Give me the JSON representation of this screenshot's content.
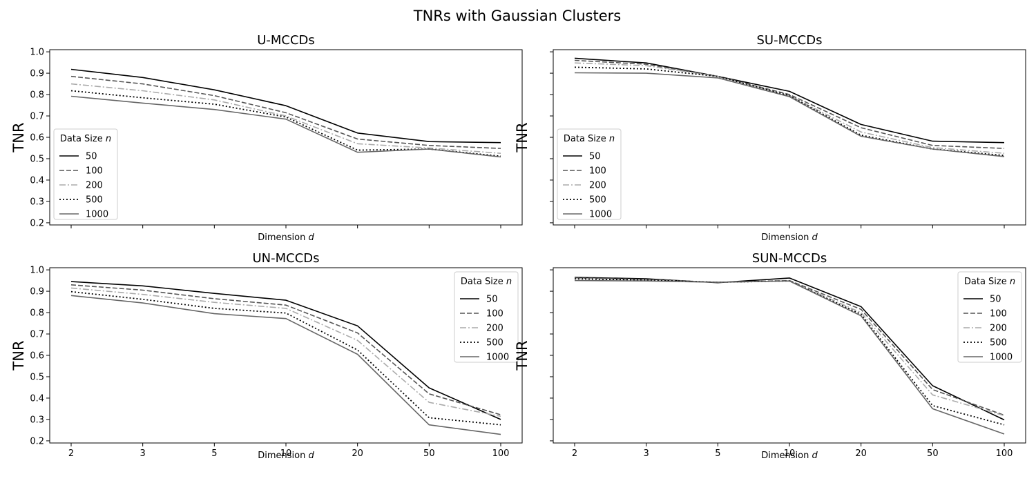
{
  "figure": {
    "title": "TNRs with Gaussian Clusters"
  },
  "chart_data": [
    {
      "type": "line",
      "title": "U-MCCDs",
      "xlabel": "Dimension d",
      "xlabel_main": "Dimension ",
      "xlabel_var": "d",
      "ylabel": "TNR",
      "categories": [
        "2",
        "3",
        "5",
        "10",
        "20",
        "50",
        "100"
      ],
      "show_xtick_labels": false,
      "show_ytick_labels": true,
      "ylim": [
        0.19,
        1.01
      ],
      "yticks": [
        0.2,
        0.3,
        0.4,
        0.5,
        0.6,
        0.7,
        0.8,
        0.9,
        1.0
      ],
      "ytick_labels": [
        "0.2",
        "0.3",
        "0.4",
        "0.5",
        "0.6",
        "0.7",
        "0.8",
        "0.9",
        "1.0"
      ],
      "grid": false,
      "legend": {
        "title": "Data Size n",
        "title_main": "Data Size ",
        "title_var": "n",
        "position": "center-left"
      },
      "series": [
        {
          "name": "50",
          "color": "#000000",
          "dash": "solid",
          "values": [
            0.918,
            0.88,
            0.822,
            0.748,
            0.62,
            0.58,
            0.575
          ]
        },
        {
          "name": "100",
          "color": "#555555",
          "dash": "dashed",
          "values": [
            0.885,
            0.85,
            0.795,
            0.715,
            0.592,
            0.562,
            0.548
          ]
        },
        {
          "name": "200",
          "color": "#aaaaaa",
          "dash": "dashdot",
          "values": [
            0.85,
            0.818,
            0.775,
            0.7,
            0.57,
            0.55,
            0.525
          ]
        },
        {
          "name": "500",
          "color": "#000000",
          "dash": "dotted",
          "values": [
            0.818,
            0.785,
            0.755,
            0.695,
            0.54,
            0.545,
            0.512
          ]
        },
        {
          "name": "1000",
          "color": "#666666",
          "dash": "solid",
          "values": [
            0.792,
            0.76,
            0.73,
            0.685,
            0.53,
            0.545,
            0.508
          ]
        }
      ]
    },
    {
      "type": "line",
      "title": "SU-MCCDs",
      "xlabel": "Dimension d",
      "xlabel_main": "Dimension ",
      "xlabel_var": "d",
      "ylabel": "TNR",
      "categories": [
        "2",
        "3",
        "5",
        "10",
        "20",
        "50",
        "100"
      ],
      "show_xtick_labels": false,
      "show_ytick_labels": false,
      "ylim": [
        0.19,
        1.01
      ],
      "yticks": [
        0.2,
        0.3,
        0.4,
        0.5,
        0.6,
        0.7,
        0.8,
        0.9,
        1.0
      ],
      "ytick_labels": [],
      "grid": false,
      "legend": {
        "title": "Data Size n",
        "title_main": "Data Size ",
        "title_var": "n",
        "position": "center-left"
      },
      "series": [
        {
          "name": "50",
          "color": "#000000",
          "dash": "solid",
          "values": [
            0.97,
            0.948,
            0.885,
            0.815,
            0.66,
            0.582,
            0.575
          ]
        },
        {
          "name": "100",
          "color": "#555555",
          "dash": "dashed",
          "values": [
            0.96,
            0.942,
            0.885,
            0.8,
            0.645,
            0.562,
            0.548
          ]
        },
        {
          "name": "200",
          "color": "#aaaaaa",
          "dash": "dashdot",
          "values": [
            0.948,
            0.935,
            0.885,
            0.795,
            0.625,
            0.552,
            0.525
          ]
        },
        {
          "name": "500",
          "color": "#000000",
          "dash": "dotted",
          "values": [
            0.928,
            0.92,
            0.885,
            0.795,
            0.61,
            0.545,
            0.515
          ]
        },
        {
          "name": "1000",
          "color": "#666666",
          "dash": "solid",
          "values": [
            0.902,
            0.9,
            0.878,
            0.79,
            0.605,
            0.545,
            0.51
          ]
        }
      ]
    },
    {
      "type": "line",
      "title": "UN-MCCDs",
      "xlabel": "Dimension d",
      "xlabel_main": "Dimension ",
      "xlabel_var": "d",
      "ylabel": "TNR",
      "categories": [
        "2",
        "3",
        "5",
        "10",
        "20",
        "50",
        "100"
      ],
      "show_xtick_labels": true,
      "show_ytick_labels": true,
      "ylim": [
        0.19,
        1.01
      ],
      "yticks": [
        0.2,
        0.3,
        0.4,
        0.5,
        0.6,
        0.7,
        0.8,
        0.9,
        1.0
      ],
      "ytick_labels": [
        "0.2",
        "0.3",
        "0.4",
        "0.5",
        "0.6",
        "0.7",
        "0.8",
        "0.9",
        "1.0"
      ],
      "grid": false,
      "legend": {
        "title": "Data Size n",
        "title_main": "Data Size ",
        "title_var": "n",
        "position": "upper-right"
      },
      "series": [
        {
          "name": "50",
          "color": "#000000",
          "dash": "solid",
          "values": [
            0.945,
            0.925,
            0.89,
            0.858,
            0.738,
            0.448,
            0.3
          ]
        },
        {
          "name": "100",
          "color": "#555555",
          "dash": "dashed",
          "values": [
            0.93,
            0.905,
            0.865,
            0.835,
            0.705,
            0.42,
            0.322
          ]
        },
        {
          "name": "200",
          "color": "#aaaaaa",
          "dash": "dashdot",
          "values": [
            0.915,
            0.885,
            0.848,
            0.82,
            0.67,
            0.38,
            0.315
          ]
        },
        {
          "name": "500",
          "color": "#000000",
          "dash": "dotted",
          "values": [
            0.898,
            0.862,
            0.82,
            0.798,
            0.625,
            0.308,
            0.275
          ]
        },
        {
          "name": "1000",
          "color": "#666666",
          "dash": "solid",
          "values": [
            0.88,
            0.845,
            0.795,
            0.772,
            0.605,
            0.275,
            0.23
          ]
        }
      ]
    },
    {
      "type": "line",
      "title": "SUN-MCCDs",
      "xlabel": "Dimension d",
      "xlabel_main": "Dimension ",
      "xlabel_var": "d",
      "ylabel": "TNR",
      "categories": [
        "2",
        "3",
        "5",
        "10",
        "20",
        "50",
        "100"
      ],
      "show_xtick_labels": true,
      "show_ytick_labels": false,
      "ylim": [
        0.19,
        1.01
      ],
      "yticks": [
        0.2,
        0.3,
        0.4,
        0.5,
        0.6,
        0.7,
        0.8,
        0.9,
        1.0
      ],
      "ytick_labels": [],
      "grid": false,
      "legend": {
        "title": "Data Size n",
        "title_main": "Data Size ",
        "title_var": "n",
        "position": "upper-right"
      },
      "series": [
        {
          "name": "50",
          "color": "#000000",
          "dash": "solid",
          "values": [
            0.965,
            0.958,
            0.94,
            0.962,
            0.828,
            0.458,
            0.298
          ]
        },
        {
          "name": "100",
          "color": "#555555",
          "dash": "dashed",
          "values": [
            0.962,
            0.955,
            0.942,
            0.95,
            0.815,
            0.44,
            0.32
          ]
        },
        {
          "name": "200",
          "color": "#aaaaaa",
          "dash": "dashdot",
          "values": [
            0.96,
            0.952,
            0.942,
            0.948,
            0.8,
            0.415,
            0.318
          ]
        },
        {
          "name": "500",
          "color": "#000000",
          "dash": "dotted",
          "values": [
            0.958,
            0.952,
            0.942,
            0.948,
            0.792,
            0.365,
            0.275
          ]
        },
        {
          "name": "1000",
          "color": "#666666",
          "dash": "solid",
          "values": [
            0.95,
            0.948,
            0.942,
            0.948,
            0.785,
            0.35,
            0.232
          ]
        }
      ]
    }
  ]
}
